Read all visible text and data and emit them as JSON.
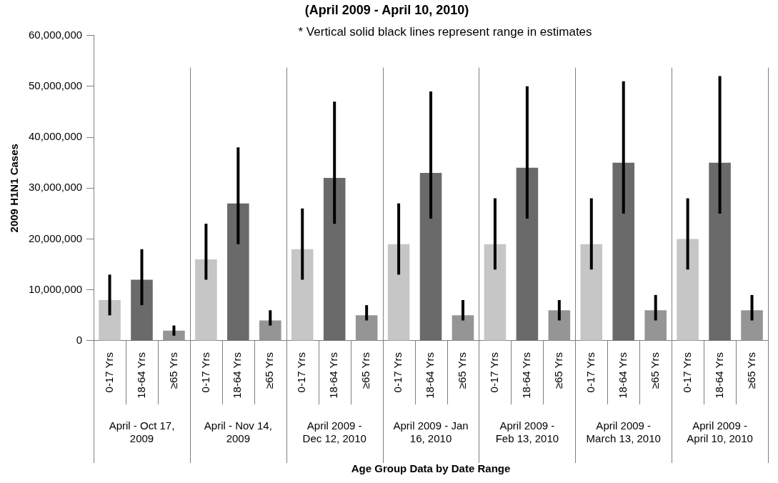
{
  "chart_data": {
    "type": "bar",
    "title": "(April 2009 - April 10, 2010)",
    "annotations": [
      "* Vertical solid black lines represent range in estimates"
    ],
    "xlabel": "Age Group Data by Date Range",
    "ylabel": "2009 H1N1 Cases",
    "categories": [
      "April - Oct 17, 2009",
      "April - Nov 14, 2009",
      "April 2009 - Dec 12, 2010",
      "April 2009 - Jan 16, 2010",
      "April 2009 - Feb 13, 2010",
      "April 2009 - March 13, 2010",
      "April 2009 - April 10, 2010"
    ],
    "series": [
      {
        "name": "0-17 Yrs",
        "color": "#c6c6c6",
        "values": [
          8000000,
          16000000,
          18000000,
          19000000,
          19000000,
          19000000,
          20000000
        ],
        "errors": [
          [
            5000000,
            13000000
          ],
          [
            12000000,
            23000000
          ],
          [
            12000000,
            26000000
          ],
          [
            13000000,
            27000000
          ],
          [
            14000000,
            28000000
          ],
          [
            14000000,
            28000000
          ],
          [
            14000000,
            28000000
          ]
        ]
      },
      {
        "name": "18-64 Yrs",
        "color": "#6a6a6a",
        "values": [
          12000000,
          27000000,
          32000000,
          33000000,
          34000000,
          35000000,
          35000000
        ],
        "errors": [
          [
            7000000,
            18000000
          ],
          [
            19000000,
            38000000
          ],
          [
            23000000,
            47000000
          ],
          [
            24000000,
            49000000
          ],
          [
            24000000,
            50000000
          ],
          [
            25000000,
            51000000
          ],
          [
            25000000,
            52000000
          ]
        ]
      },
      {
        "name": "≥65 Yrs",
        "color": "#959595",
        "values": [
          2000000,
          4000000,
          5000000,
          5000000,
          6000000,
          6000000,
          6000000
        ],
        "errors": [
          [
            1000000,
            3000000
          ],
          [
            3000000,
            6000000
          ],
          [
            4000000,
            7000000
          ],
          [
            4000000,
            8000000
          ],
          [
            4000000,
            8000000
          ],
          [
            4000000,
            9000000
          ],
          [
            4000000,
            9000000
          ]
        ]
      }
    ],
    "ylim": [
      0,
      60000000
    ],
    "yticks": [
      {
        "value": 0,
        "label": "0"
      },
      {
        "value": 10000000,
        "label": "10,000,000"
      },
      {
        "value": 20000000,
        "label": "20,000,000"
      },
      {
        "value": 30000000,
        "label": "30,000,000"
      },
      {
        "value": 40000000,
        "label": "40,000,000"
      },
      {
        "value": 50000000,
        "label": "50,000,000"
      },
      {
        "value": 60000000,
        "label": "60,000,000"
      }
    ],
    "grid": "x",
    "legend": false
  }
}
